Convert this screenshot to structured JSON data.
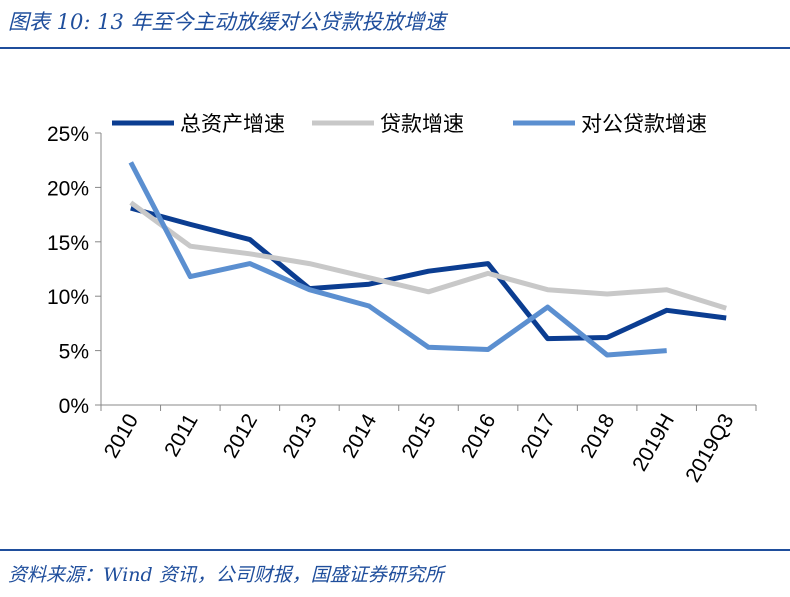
{
  "header": {
    "title": "图表 10:  13 年至今主动放缓对公贷款投放增速"
  },
  "footer": {
    "source": "资料来源：Wind 资讯，公司财报，国盛证券研究所"
  },
  "colors": {
    "series1": "#0b3d91",
    "series2": "#c8c8c8",
    "series3": "#5b8fd0",
    "brand": "#1f4e9c",
    "axis": "#888888"
  },
  "chart_data": {
    "type": "line",
    "categories": [
      "2010",
      "2011",
      "2012",
      "2013",
      "2014",
      "2015",
      "2016",
      "2017",
      "2018",
      "2019H",
      "2019Q3"
    ],
    "y_ticks": [
      "0%",
      "5%",
      "10%",
      "15%",
      "20%",
      "25%"
    ],
    "ylim": [
      0,
      25
    ],
    "grid": false,
    "legend_position": "top",
    "series": [
      {
        "name": "总资产增速",
        "values": [
          18.1,
          16.6,
          15.2,
          10.7,
          11.1,
          12.3,
          13.0,
          6.1,
          6.2,
          8.7,
          8.0
        ]
      },
      {
        "name": "贷款增速",
        "values": [
          18.6,
          14.6,
          13.9,
          13.0,
          11.7,
          10.4,
          12.1,
          10.6,
          10.2,
          10.6,
          8.9
        ]
      },
      {
        "name": "对公贷款增速",
        "values": [
          22.3,
          11.8,
          13.0,
          10.6,
          9.1,
          5.3,
          5.1,
          9.0,
          4.6,
          5.0,
          null
        ]
      }
    ]
  }
}
